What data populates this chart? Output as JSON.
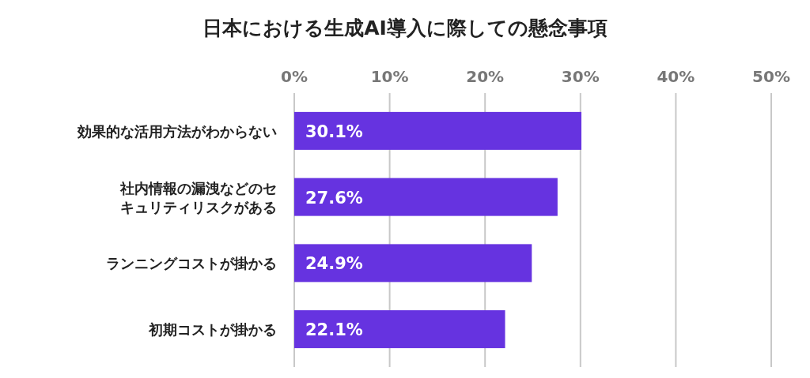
{
  "chart_data": {
    "type": "bar",
    "orientation": "horizontal",
    "title": "日本における生成AI導入に際しての懸念事項",
    "categories": [
      "効果的な活用方法がわからない",
      "社内情報の漏洩などのセキュリティリスクがある",
      "ランニングコストが掛かる",
      "初期コストが掛かる"
    ],
    "values": [
      30.1,
      27.6,
      24.9,
      22.1
    ],
    "value_labels": [
      "30.1%",
      "27.6%",
      "24.9%",
      "22.1%"
    ],
    "color": "#6633e0",
    "xlim": [
      0,
      50
    ],
    "xticks": [
      {
        "value": 0,
        "label": "0%"
      },
      {
        "value": 10,
        "label": "10%"
      },
      {
        "value": 20,
        "label": "20%"
      },
      {
        "value": 30,
        "label": "30%"
      },
      {
        "value": 40,
        "label": "40%"
      },
      {
        "value": 50,
        "label": "50%"
      }
    ],
    "grid": "x"
  }
}
